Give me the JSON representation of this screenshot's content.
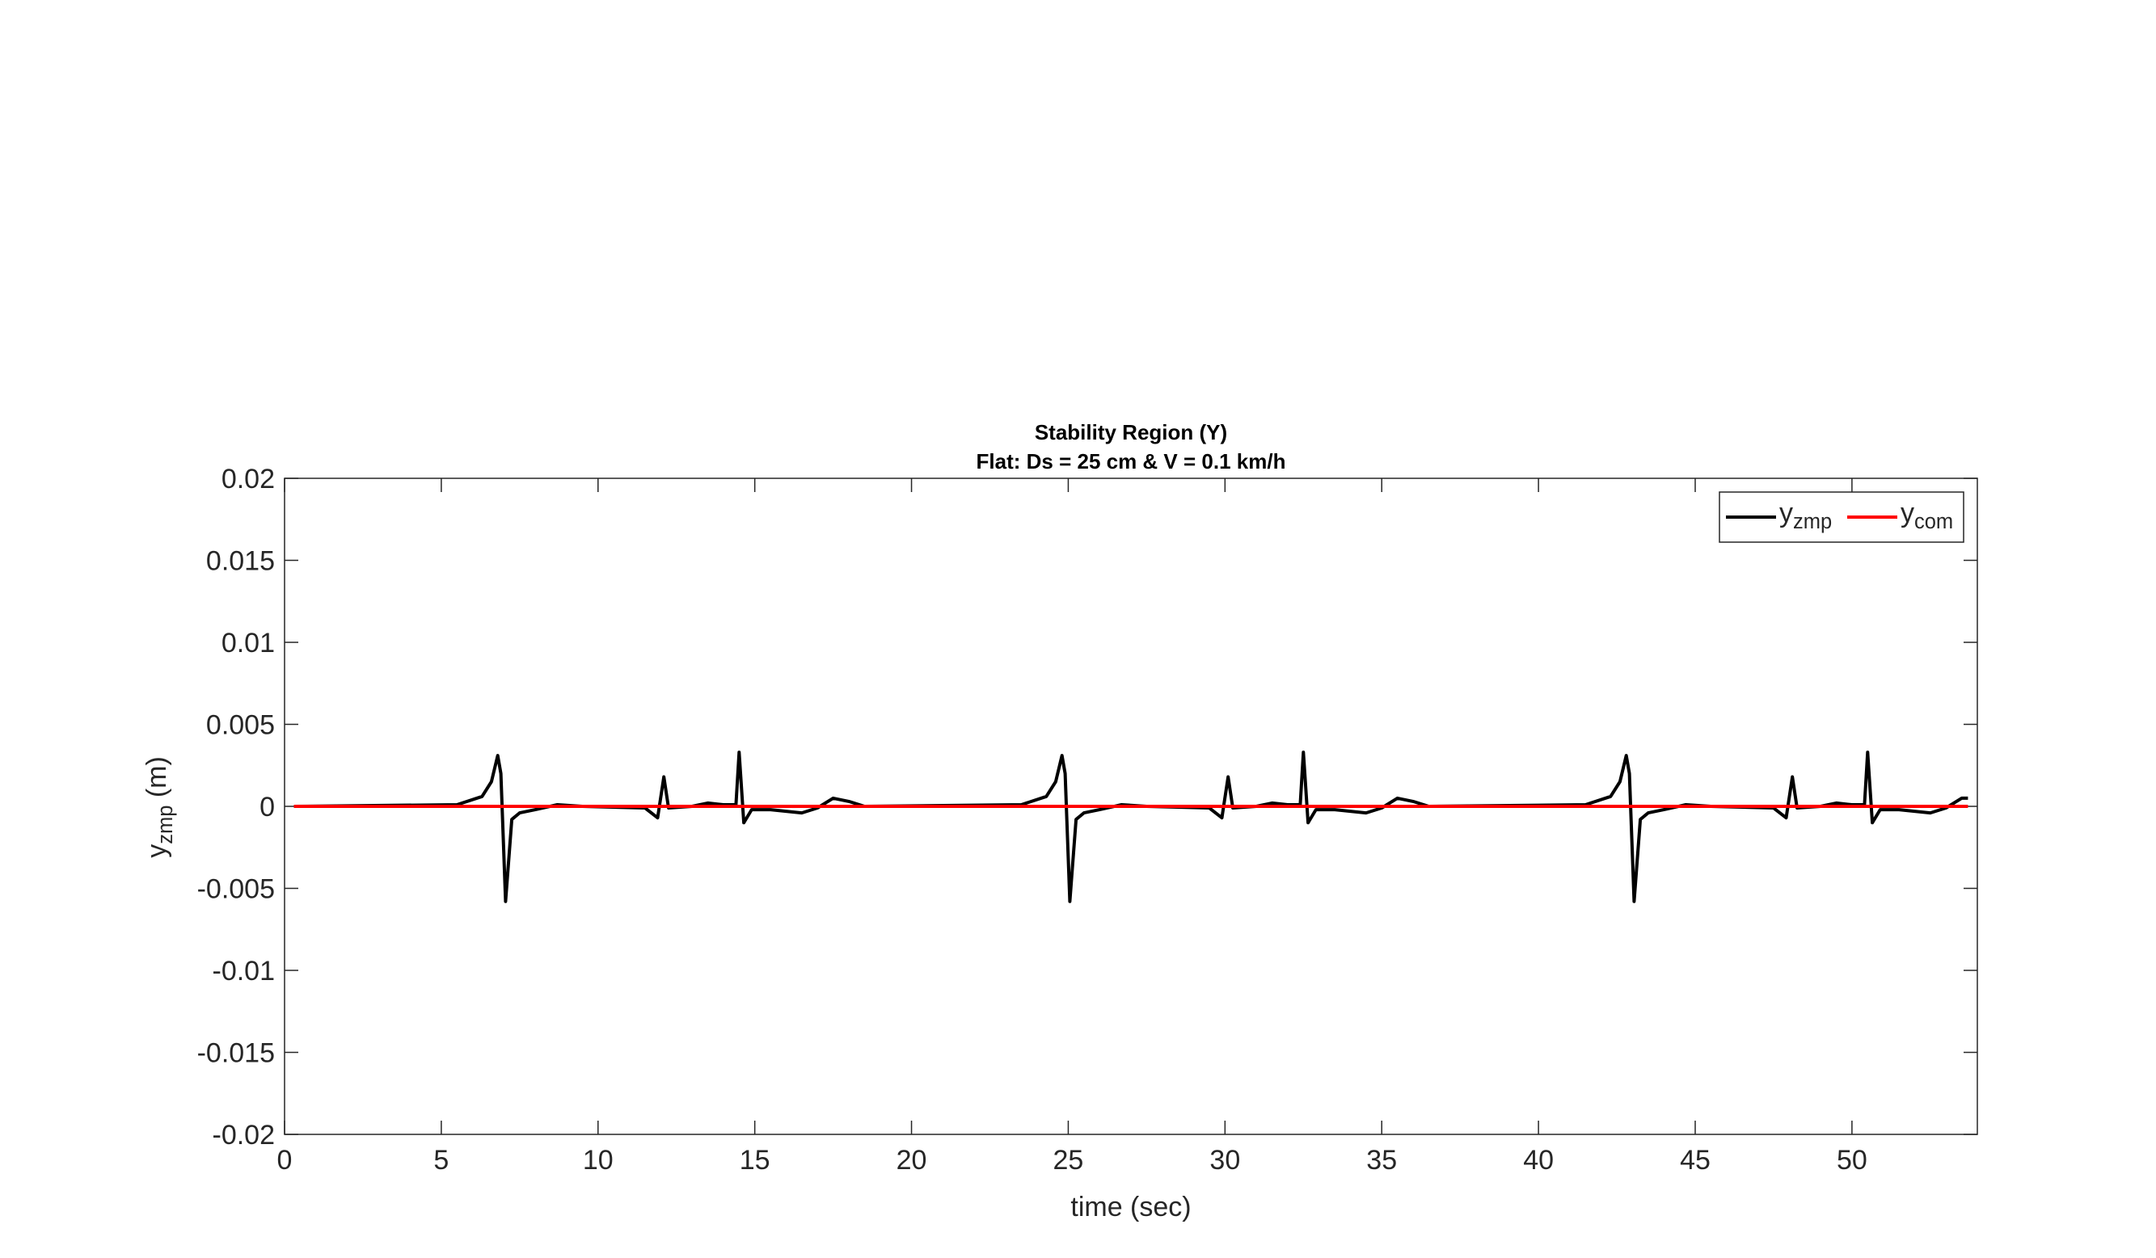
{
  "chart_data": {
    "type": "line",
    "title": [
      "Stability Region (Y)",
      "Flat: Ds = 25 cm & V = 0.1 km/h"
    ],
    "xlabel": "time (sec)",
    "ylabel": "y_{zmp} (m)",
    "xlim": [
      0,
      54
    ],
    "ylim": [
      -0.02,
      0.02
    ],
    "xticks": [
      0,
      5,
      10,
      15,
      20,
      25,
      30,
      35,
      40,
      45,
      50
    ],
    "yticks": [
      -0.02,
      -0.015,
      -0.01,
      -0.005,
      0,
      0.005,
      0.01,
      0.015,
      0.02
    ],
    "legend": "upper right",
    "series": [
      {
        "name": "y_{zmp}",
        "color": "#000000",
        "x": [
          0.3,
          5.5,
          6.3,
          6.6,
          6.8,
          6.9,
          7.05,
          7.25,
          7.5,
          8,
          8.7,
          9.5,
          11.5,
          11.9,
          12.1,
          12.25,
          13,
          13.5,
          14,
          14.4,
          14.5,
          14.65,
          14.9,
          15.5,
          16.5,
          17,
          17.5,
          18,
          18.5,
          23.5,
          24.3,
          24.6,
          24.8,
          24.9,
          25.05,
          25.25,
          25.5,
          26,
          26.7,
          27.5,
          29.5,
          29.9,
          30.1,
          30.25,
          31,
          31.5,
          32,
          32.4,
          32.5,
          32.65,
          32.9,
          33.5,
          34.5,
          35,
          35.5,
          36,
          36.5,
          41.5,
          42.3,
          42.6,
          42.8,
          42.9,
          43.05,
          43.25,
          43.5,
          44,
          44.7,
          45.5,
          47.5,
          47.9,
          48.1,
          48.25,
          49,
          49.5,
          50,
          50.4,
          50.5,
          50.65,
          50.9,
          51.5,
          52.5,
          53,
          53.5,
          53.7
        ],
        "values": [
          0,
          0.0001,
          0.0006,
          0.0015,
          0.0031,
          0.002,
          -0.0058,
          -0.0008,
          -0.0004,
          -0.0002,
          0.0001,
          0,
          -0.0001,
          -0.0007,
          0.0018,
          -0.0001,
          0,
          0.0002,
          0.0001,
          0.0001,
          0.0033,
          -0.001,
          -0.0002,
          -0.0002,
          -0.0004,
          -0.0001,
          0.0005,
          0.0003,
          0,
          0.0001,
          0.0006,
          0.0015,
          0.0031,
          0.002,
          -0.0058,
          -0.0008,
          -0.0004,
          -0.0002,
          0.0001,
          0,
          -0.0001,
          -0.0007,
          0.0018,
          -0.0001,
          0,
          0.0002,
          0.0001,
          0.0001,
          0.0033,
          -0.001,
          -0.0002,
          -0.0002,
          -0.0004,
          -0.0001,
          0.0005,
          0.0003,
          0,
          0.0001,
          0.0006,
          0.0015,
          0.0031,
          0.002,
          -0.0058,
          -0.0008,
          -0.0004,
          -0.0002,
          0.0001,
          0,
          -0.0001,
          -0.0007,
          0.0018,
          -0.0001,
          0,
          0.0002,
          0.0001,
          0.0001,
          0.0033,
          -0.001,
          -0.0002,
          -0.0002,
          -0.0004,
          -0.0001,
          0.0005,
          0.0005
        ]
      },
      {
        "name": "y_{com}",
        "color": "#ff0000",
        "x": [
          0.3,
          53.7
        ],
        "values": [
          0,
          0
        ]
      }
    ]
  }
}
